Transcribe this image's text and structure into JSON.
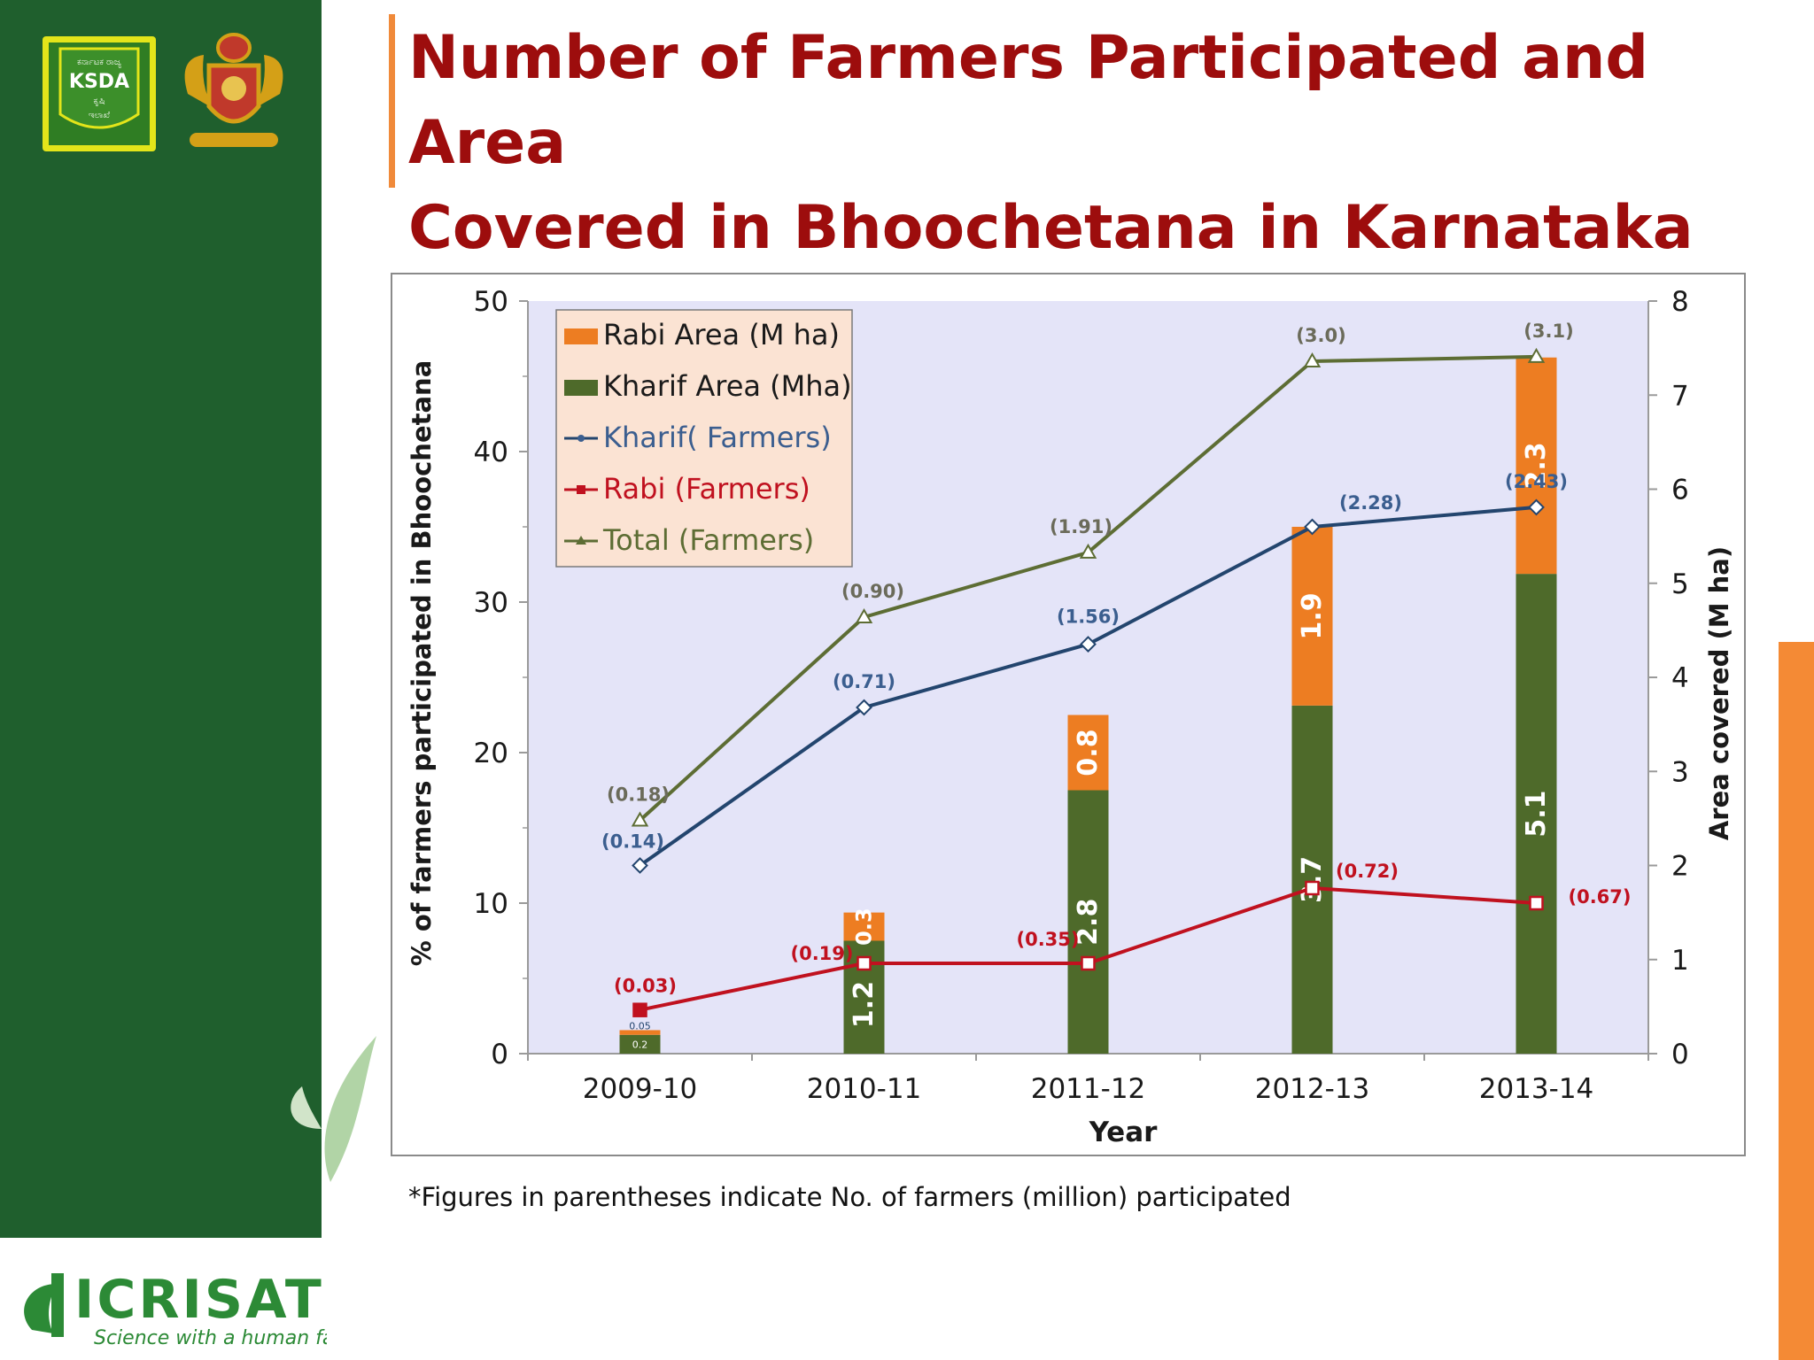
{
  "slide": {
    "title_line1": "Number of Farmers Participated and Area",
    "title_line2": "Covered in Bhoochetana in Karnataka",
    "footnote": "*Figures in parentheses indicate No. of farmers (million) participated"
  },
  "logos": {
    "ksda": {
      "line1": "ಕರ್ನಾಟಕ ರಾಜ್ಯ",
      "line2": "KSDA",
      "line3": "ಕೃಷಿ",
      "line4": "ಇಲಾಖೆ"
    },
    "icrisat": {
      "name": "ICRISAT",
      "tagline": "Science with a human face"
    }
  },
  "colors": {
    "sidebar": "#1f5f2d",
    "title": "#9d0d0d",
    "accent": "#f08a3a",
    "plot_bg": "#e4e4f8",
    "rabi_area": "#ed7d22",
    "kharif_area": "#4e6a2a",
    "kharif_farmers": "#23456e",
    "rabi_farmers": "#c0111f",
    "total_farmers": "#5d6d34"
  },
  "chart_data": {
    "type": "bar",
    "categories": [
      "2009-10",
      "2010-11",
      "2011-12",
      "2012-13",
      "2013-14"
    ],
    "xlabel": "Year",
    "ylabel": "% of farmers participated in Bhoochetana",
    "y2label": "Area covered  (M ha)",
    "ylim": [
      0,
      50
    ],
    "y_ticks": [
      0,
      10,
      20,
      30,
      40,
      50
    ],
    "y2lim": [
      0,
      8
    ],
    "y2_ticks": [
      0,
      1,
      2,
      3,
      4,
      5,
      6,
      7,
      8
    ],
    "legend_position": "top-left",
    "bar_series": [
      {
        "name": "Rabi Area (M ha)",
        "axis": "right",
        "values": [
          0.05,
          0.3,
          0.8,
          1.9,
          2.3
        ],
        "labels": [
          "0.05",
          "0.3",
          "0.8",
          "1.9",
          "2.3"
        ]
      },
      {
        "name": "Kharif Area (Mha)",
        "axis": "right",
        "values": [
          0.2,
          1.2,
          2.8,
          3.7,
          5.1
        ],
        "labels": [
          "0.2",
          "1.2",
          "2.8",
          "3.7",
          "5.1"
        ]
      }
    ],
    "line_series": [
      {
        "name": "Kharif( Farmers)",
        "axis": "left",
        "values": [
          12.5,
          23,
          27.2,
          35,
          36.3
        ],
        "labels": [
          "(0.14)",
          "(0.71)",
          "(1.56)",
          "(2.28)",
          "(2.43)"
        ]
      },
      {
        "name": "Rabi (Farmers)",
        "axis": "left",
        "values": [
          2.9,
          6,
          6,
          11,
          10
        ],
        "labels": [
          "(0.03)",
          "(0.19)",
          "(0.35)",
          "(0.72)",
          "(0.67)"
        ]
      },
      {
        "name": "Total (Farmers)",
        "axis": "left",
        "values": [
          15.5,
          29,
          33.3,
          46,
          46.3
        ],
        "labels": [
          "(0.18)",
          "(0.90)",
          "(1.91)",
          "(3.0)",
          "(3.1)"
        ]
      }
    ]
  }
}
